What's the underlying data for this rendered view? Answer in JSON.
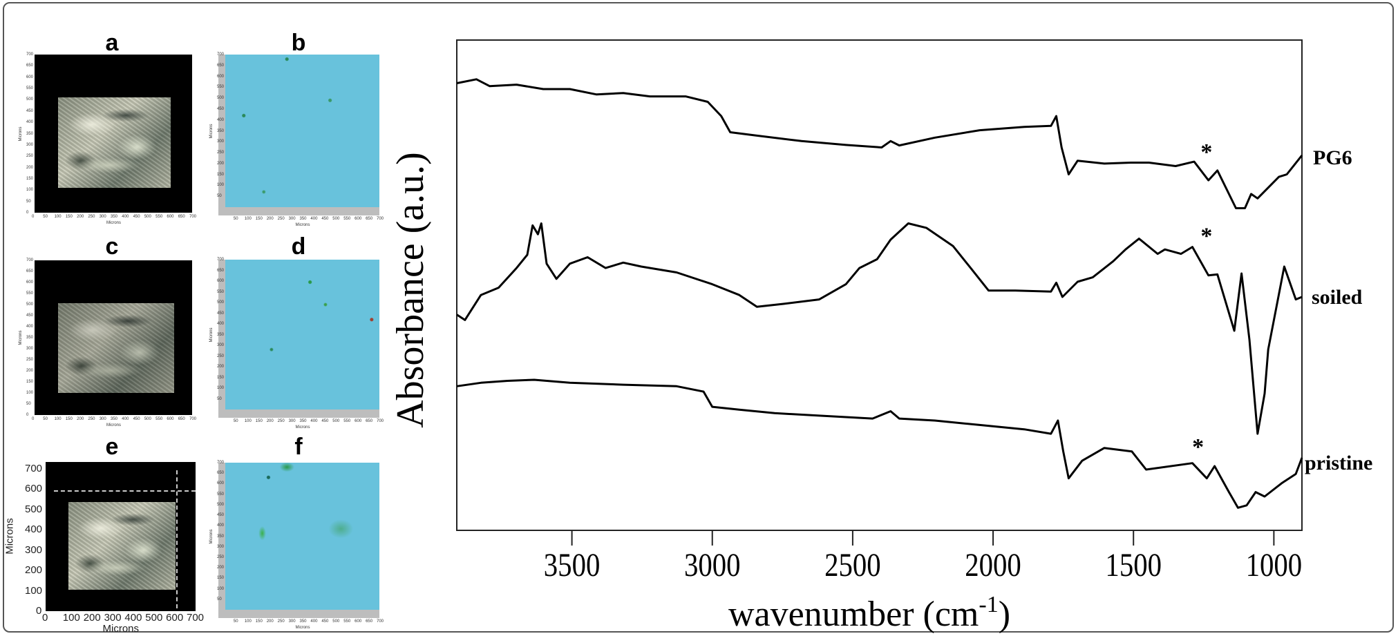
{
  "panels": {
    "a": {
      "label": "a",
      "x_title": "Microns",
      "y_title": "Microns",
      "x_ticks": [
        "0",
        "50",
        "100",
        "150",
        "200",
        "250",
        "300",
        "350",
        "400",
        "450",
        "500",
        "550",
        "600",
        "650",
        "700"
      ],
      "y_ticks": [
        "0",
        "50",
        "100",
        "150",
        "200",
        "250",
        "300",
        "350",
        "400",
        "450",
        "500",
        "550",
        "600",
        "650",
        "700"
      ]
    },
    "b": {
      "label": "b",
      "x_title": "Microns",
      "y_title": "Microns",
      "x_ticks": [
        "50",
        "100",
        "150",
        "200",
        "250",
        "300",
        "350",
        "400",
        "450",
        "500",
        "550",
        "600",
        "650",
        "700"
      ],
      "y_ticks": [
        "50",
        "100",
        "150",
        "200",
        "250",
        "300",
        "350",
        "400",
        "450",
        "500",
        "550",
        "600",
        "650",
        "700"
      ]
    },
    "c": {
      "label": "c",
      "x_title": "Microns",
      "y_title": "Microns",
      "x_ticks": [
        "0",
        "50",
        "100",
        "150",
        "200",
        "250",
        "300",
        "350",
        "400",
        "450",
        "500",
        "550",
        "600",
        "650",
        "700"
      ],
      "y_ticks": [
        "0",
        "50",
        "100",
        "150",
        "200",
        "250",
        "300",
        "350",
        "400",
        "450",
        "500",
        "550",
        "600",
        "650",
        "700"
      ]
    },
    "d": {
      "label": "d",
      "x_title": "Microns",
      "y_title": "Microns",
      "x_ticks": [
        "50",
        "100",
        "150",
        "200",
        "250",
        "300",
        "350",
        "400",
        "450",
        "500",
        "550",
        "600",
        "650",
        "700"
      ],
      "y_ticks": [
        "50",
        "100",
        "150",
        "200",
        "250",
        "300",
        "350",
        "400",
        "450",
        "500",
        "550",
        "600",
        "650",
        "700"
      ]
    },
    "e": {
      "label": "e",
      "x_title": "Microns",
      "y_title": "Microns",
      "x_ticks": [
        "0",
        "100",
        "200",
        "300",
        "400",
        "500",
        "600",
        "700"
      ],
      "y_ticks": [
        "0",
        "100",
        "200",
        "300",
        "400",
        "500",
        "600",
        "700"
      ]
    },
    "f": {
      "label": "f",
      "x_title": "Microns",
      "y_title": "Microns",
      "x_ticks": [
        "50",
        "100",
        "150",
        "200",
        "250",
        "300",
        "350",
        "400",
        "450",
        "500",
        "550",
        "600",
        "650",
        "700"
      ],
      "y_ticks": [
        "50",
        "100",
        "150",
        "200",
        "250",
        "300",
        "350",
        "400",
        "450",
        "500",
        "550",
        "600",
        "650",
        "700"
      ]
    }
  },
  "colors": {
    "map_background": "#68c2dc",
    "trace": "#000000"
  },
  "chart_data": {
    "type": "line",
    "xlabel": "wavenumber (cm",
    "xlabel_sup": "-1",
    "xlabel_suffix": ")",
    "ylabel": "Absorbance (a.u.)",
    "xlim": [
      3910,
      900
    ],
    "x_reversed": true,
    "ylim": [
      0,
      100
    ],
    "y_ticks_shown": false,
    "grid": false,
    "x_ticks": [
      3500,
      3000,
      2500,
      2000,
      1500,
      1000
    ],
    "series": [
      {
        "name": "PG6",
        "marker": "*",
        "marker_at": [
          1240,
          77.6
        ],
        "points": [
          [
            3910,
            91.2
          ],
          [
            3840,
            92.0
          ],
          [
            3793,
            90.6
          ],
          [
            3697,
            90.9
          ],
          [
            3602,
            90.0
          ],
          [
            3507,
            90.0
          ],
          [
            3412,
            88.9
          ],
          [
            3317,
            89.2
          ],
          [
            3222,
            88.5
          ],
          [
            3095,
            88.5
          ],
          [
            3016,
            87.4
          ],
          [
            2968,
            84.5
          ],
          [
            2936,
            81.2
          ],
          [
            2841,
            80.5
          ],
          [
            2682,
            79.4
          ],
          [
            2524,
            78.6
          ],
          [
            2397,
            78.1
          ],
          [
            2365,
            79.4
          ],
          [
            2334,
            78.5
          ],
          [
            2207,
            80.1
          ],
          [
            2048,
            81.6
          ],
          [
            1889,
            82.3
          ],
          [
            1794,
            82.5
          ],
          [
            1775,
            84.5
          ],
          [
            1756,
            78.1
          ],
          [
            1731,
            72.6
          ],
          [
            1699,
            75.4
          ],
          [
            1604,
            74.8
          ],
          [
            1509,
            75.0
          ],
          [
            1445,
            75.0
          ],
          [
            1350,
            74.3
          ],
          [
            1284,
            75.2
          ],
          [
            1233,
            71.4
          ],
          [
            1201,
            73.4
          ],
          [
            1135,
            65.7
          ],
          [
            1103,
            65.7
          ],
          [
            1081,
            68.6
          ],
          [
            1058,
            67.7
          ],
          [
            982,
            72.1
          ],
          [
            954,
            72.6
          ],
          [
            900,
            76.5
          ]
        ]
      },
      {
        "name": "soiled",
        "marker": "*",
        "marker_at": [
          1240,
          60.5
        ],
        "points": [
          [
            3910,
            44.0
          ],
          [
            3881,
            42.9
          ],
          [
            3824,
            48.0
          ],
          [
            3761,
            49.5
          ],
          [
            3697,
            53.5
          ],
          [
            3659,
            56.2
          ],
          [
            3640,
            62.2
          ],
          [
            3621,
            60.4
          ],
          [
            3609,
            62.6
          ],
          [
            3590,
            54.4
          ],
          [
            3555,
            51.3
          ],
          [
            3507,
            54.4
          ],
          [
            3444,
            55.7
          ],
          [
            3380,
            53.5
          ],
          [
            3317,
            54.6
          ],
          [
            3253,
            53.8
          ],
          [
            3127,
            52.6
          ],
          [
            3000,
            50.2
          ],
          [
            2904,
            48.0
          ],
          [
            2841,
            45.6
          ],
          [
            2746,
            46.2
          ],
          [
            2619,
            47.1
          ],
          [
            2524,
            50.2
          ],
          [
            2476,
            53.5
          ],
          [
            2413,
            55.3
          ],
          [
            2365,
            59.3
          ],
          [
            2302,
            62.6
          ],
          [
            2238,
            61.7
          ],
          [
            2143,
            58.0
          ],
          [
            2080,
            53.5
          ],
          [
            2016,
            48.9
          ],
          [
            1921,
            48.9
          ],
          [
            1794,
            48.7
          ],
          [
            1775,
            50.5
          ],
          [
            1753,
            47.6
          ],
          [
            1699,
            50.7
          ],
          [
            1645,
            51.6
          ],
          [
            1572,
            54.9
          ],
          [
            1528,
            57.3
          ],
          [
            1480,
            59.5
          ],
          [
            1414,
            56.4
          ],
          [
            1388,
            57.3
          ],
          [
            1331,
            56.4
          ],
          [
            1290,
            57.8
          ],
          [
            1233,
            52.0
          ],
          [
            1201,
            52.2
          ],
          [
            1141,
            40.7
          ],
          [
            1115,
            52.4
          ],
          [
            1087,
            38.9
          ],
          [
            1058,
            19.7
          ],
          [
            1033,
            27.9
          ],
          [
            1020,
            36.9
          ],
          [
            963,
            53.8
          ],
          [
            922,
            47.1
          ],
          [
            900,
            47.6
          ]
        ]
      },
      {
        "name": "pristine",
        "marker": "*",
        "marker_at": [
          1270,
          17.5
        ],
        "points": [
          [
            3910,
            29.4
          ],
          [
            3824,
            30.1
          ],
          [
            3729,
            30.5
          ],
          [
            3634,
            30.7
          ],
          [
            3507,
            30.1
          ],
          [
            3317,
            29.7
          ],
          [
            3127,
            29.4
          ],
          [
            3031,
            28.3
          ],
          [
            3000,
            25.2
          ],
          [
            2904,
            24.6
          ],
          [
            2778,
            23.9
          ],
          [
            2619,
            23.4
          ],
          [
            2429,
            22.8
          ],
          [
            2365,
            24.3
          ],
          [
            2334,
            22.8
          ],
          [
            2207,
            22.4
          ],
          [
            2048,
            21.5
          ],
          [
            1889,
            20.6
          ],
          [
            1794,
            19.7
          ],
          [
            1769,
            22.4
          ],
          [
            1750,
            16.1
          ],
          [
            1731,
            10.6
          ],
          [
            1683,
            14.2
          ],
          [
            1604,
            16.8
          ],
          [
            1506,
            16.1
          ],
          [
            1455,
            12.4
          ],
          [
            1290,
            13.7
          ],
          [
            1239,
            10.6
          ],
          [
            1211,
            13.1
          ],
          [
            1160,
            7.8
          ],
          [
            1128,
            4.6
          ],
          [
            1097,
            5.1
          ],
          [
            1065,
            7.8
          ],
          [
            1033,
            6.9
          ],
          [
            970,
            9.7
          ],
          [
            922,
            11.5
          ],
          [
            900,
            14.8
          ]
        ]
      }
    ]
  }
}
